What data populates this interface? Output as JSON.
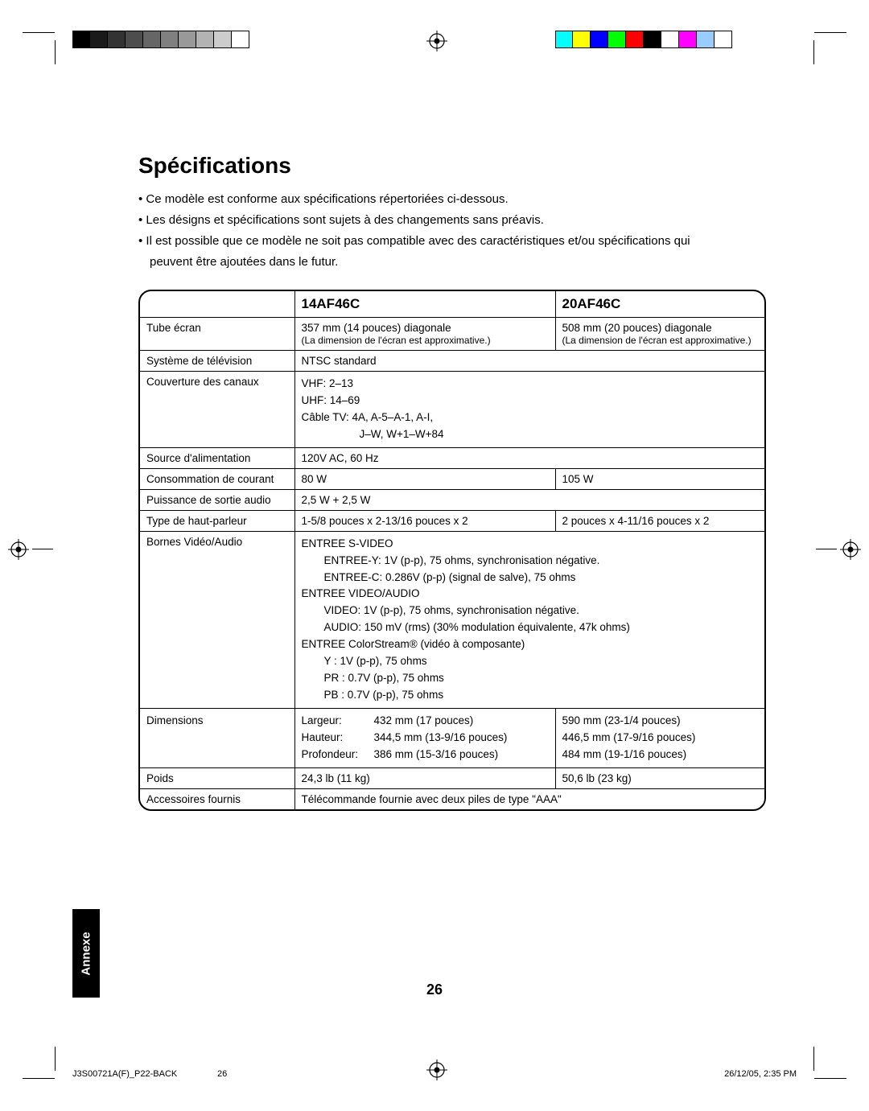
{
  "title": "Spécifications",
  "notes": [
    "• Ce modèle est conforme aux spécifications répertoriées ci-dessous.",
    "• Les désigns et spécifications sont sujets à des changements sans préavis.",
    "• Il est possible que ce modèle ne soit pas compatible avec des caractéristiques et/ou spécifications qui",
    "peuvent être ajoutées dans le futur."
  ],
  "headers": {
    "model_a": "14AF46C",
    "model_b": "20AF46C"
  },
  "rows": {
    "tube": {
      "label": "Tube écran",
      "a": "357 mm (14 pouces) diagonale",
      "b": "508 mm (20 pouces) diagonale",
      "a_sub": "(La dimension de l'écran est approximative.)",
      "b_sub": "(La dimension de l'écran est approximative.)"
    },
    "tv_system": {
      "label": "Système de télévision",
      "value": "NTSC standard"
    },
    "channels": {
      "label": "Couverture des canaux",
      "l1": "VHF: 2–13",
      "l2": "UHF: 14–69",
      "l3": "Câble TV: 4A, A-5–A-1, A-I,",
      "l4": "J–W, W+1–W+84"
    },
    "power": {
      "label": "Source d'alimentation",
      "value": "120V AC, 60 Hz"
    },
    "consumption": {
      "label": "Consommation de courant",
      "a": "80 W",
      "b": "105 W"
    },
    "audio_out": {
      "label": "Puissance de sortie audio",
      "value": "2,5 W + 2,5 W"
    },
    "speaker": {
      "label": "Type de haut-parleur",
      "a": "1-5/8 pouces x 2-13/16 pouces x 2",
      "b": "2 pouces x 4-11/16 pouces x 2"
    },
    "va": {
      "label": "Bornes Vidéo/Audio",
      "l1": "ENTREE S-VIDEO",
      "l2": "ENTREE-Y: 1V (p-p), 75 ohms, synchronisation négative.",
      "l3": "ENTREE-C: 0.286V (p-p) (signal de salve), 75 ohms",
      "l4": "ENTREE VIDEO/AUDIO",
      "l5": "VIDEO: 1V (p-p), 75 ohms, synchronisation négative.",
      "l6": "AUDIO: 150 mV (rms) (30% modulation équivalente, 47k ohms)",
      "l7": "ENTREE ColorStream® (vidéo à composante)",
      "l8": "Y   : 1V (p-p), 75 ohms",
      "l9": "PR : 0.7V (p-p), 75 ohms",
      "l10": "PB : 0.7V (p-p), 75 ohms"
    },
    "dims": {
      "label": "Dimensions",
      "w_label": "Largeur:",
      "h_label": "Hauteur:",
      "d_label": "Profondeur:",
      "a_w": "432 mm (17 pouces)",
      "a_h": "344,5 mm (13-9/16 pouces)",
      "a_d": "386 mm (15-3/16 pouces)",
      "b_w": "590 mm (23-1/4 pouces)",
      "b_h": "446,5 mm (17-9/16 pouces)",
      "b_d": "484 mm (19-1/16 pouces)"
    },
    "weight": {
      "label": "Poids",
      "a": "24,3 lb (11 kg)",
      "b": "50,6 lb (23 kg)"
    },
    "accessories": {
      "label": "Accessoires fournis",
      "value": "Télécommande fournie avec deux piles de type \"AAA\""
    }
  },
  "side_tab": "Annexe",
  "page_number": "26",
  "footer": {
    "left": "J3S00721A(F)_P22-BACK",
    "mid": "26",
    "right": "26/12/05, 2:35 PM"
  },
  "gray_ramp": [
    "#000000",
    "#1a1a1a",
    "#333333",
    "#4d4d4d",
    "#666666",
    "#808080",
    "#999999",
    "#b3b3b3",
    "#cccccc",
    "#ffffff"
  ],
  "color_ramp": [
    "#00ffff",
    "#ffff00",
    "#0000ff",
    "#00ff00",
    "#ff0000",
    "#000000",
    "#ffffff",
    "#ff00ff",
    "#99ccff",
    "#ffffff"
  ],
  "style": {
    "page_bg": "#ffffff",
    "text_color": "#000000",
    "border_color": "#000000",
    "h1_fontsize": 28,
    "body_fontsize": 13.5,
    "border_radius": 16
  }
}
